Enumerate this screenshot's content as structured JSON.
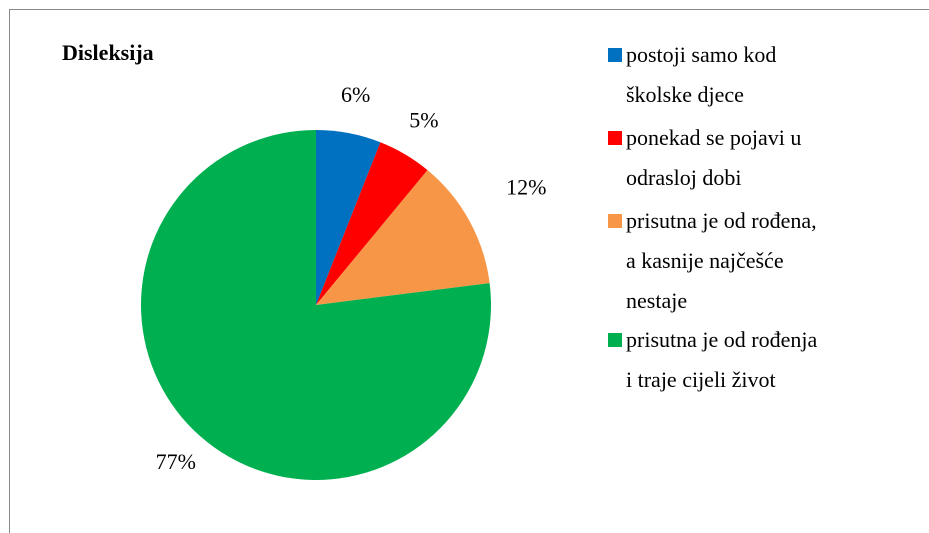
{
  "chart_data": {
    "type": "pie",
    "title": "Disleksija",
    "categories": [
      "postoji samo kod\nškolske djece",
      "ponekad se pojavi u\nodrasloj dobi",
      "prisutna je od rođena,\na kasnije najčešće\nnestaje",
      "prisutna je od rođenja\ni traje cijeli život"
    ],
    "values": [
      6,
      5,
      12,
      77
    ],
    "value_labels": [
      "6%",
      "5%",
      "12%",
      "77%"
    ],
    "colors": [
      "#0070c0",
      "#ff0000",
      "#f79646",
      "#00b050"
    ],
    "legend": "right"
  }
}
